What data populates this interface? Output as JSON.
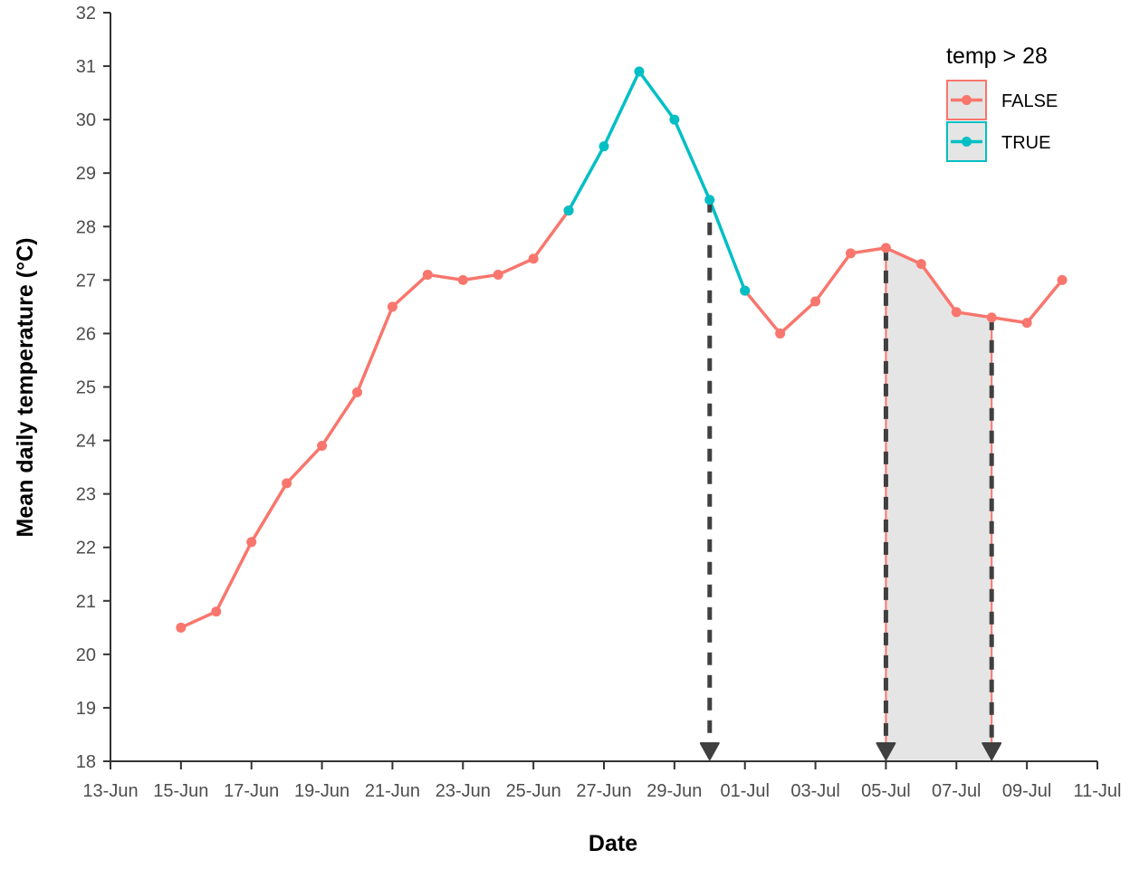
{
  "chart_data": {
    "type": "line",
    "title": "",
    "xlabel": "Date",
    "ylabel": "Mean daily temperature (°C)",
    "xlim": [
      "2023-06-13",
      "2023-07-11"
    ],
    "ylim": [
      18,
      32
    ],
    "x_ticks": [
      {
        "date": "2023-06-13",
        "label": "13-Jun"
      },
      {
        "date": "2023-06-15",
        "label": "15-Jun"
      },
      {
        "date": "2023-06-17",
        "label": "17-Jun"
      },
      {
        "date": "2023-06-19",
        "label": "19-Jun"
      },
      {
        "date": "2023-06-21",
        "label": "21-Jun"
      },
      {
        "date": "2023-06-23",
        "label": "23-Jun"
      },
      {
        "date": "2023-06-25",
        "label": "25-Jun"
      },
      {
        "date": "2023-06-27",
        "label": "27-Jun"
      },
      {
        "date": "2023-06-29",
        "label": "29-Jun"
      },
      {
        "date": "2023-07-01",
        "label": "01-Jul"
      },
      {
        "date": "2023-07-03",
        "label": "03-Jul"
      },
      {
        "date": "2023-07-05",
        "label": "05-Jul"
      },
      {
        "date": "2023-07-07",
        "label": "07-Jul"
      },
      {
        "date": "2023-07-09",
        "label": "09-Jul"
      },
      {
        "date": "2023-07-11",
        "label": "11-Jul"
      }
    ],
    "y_ticks": [
      18,
      19,
      20,
      21,
      22,
      23,
      24,
      25,
      26,
      27,
      28,
      29,
      30,
      31,
      32
    ],
    "grid": false,
    "legend": {
      "title": "temp > 28",
      "position": "top-right",
      "entries": [
        {
          "label": "FALSE",
          "color": "#f8766d"
        },
        {
          "label": "TRUE",
          "color": "#00bfc4"
        }
      ]
    },
    "series": [
      {
        "name": "FALSE",
        "color": "#f8766d",
        "segments": [
          [
            [
              "2023-06-15",
              20.5
            ],
            [
              "2023-06-16",
              20.8
            ],
            [
              "2023-06-17",
              22.1
            ],
            [
              "2023-06-18",
              23.2
            ],
            [
              "2023-06-19",
              23.9
            ],
            [
              "2023-06-20",
              24.9
            ],
            [
              "2023-06-21",
              26.5
            ],
            [
              "2023-06-22",
              27.1
            ],
            [
              "2023-06-23",
              27.0
            ],
            [
              "2023-06-24",
              27.1
            ],
            [
              "2023-06-25",
              27.4
            ],
            [
              "2023-06-26",
              28.3
            ]
          ],
          [
            [
              "2023-07-01",
              26.8
            ],
            [
              "2023-07-02",
              26.0
            ],
            [
              "2023-07-03",
              26.6
            ],
            [
              "2023-07-04",
              27.5
            ],
            [
              "2023-07-05",
              27.6
            ],
            [
              "2023-07-06",
              27.3
            ],
            [
              "2023-07-07",
              26.4
            ],
            [
              "2023-07-08",
              26.3
            ],
            [
              "2023-07-09",
              26.2
            ],
            [
              "2023-07-10",
              27.0
            ]
          ]
        ]
      },
      {
        "name": "TRUE",
        "color": "#00bfc4",
        "segments": [
          [
            [
              "2023-06-26",
              28.3
            ],
            [
              "2023-06-27",
              29.5
            ],
            [
              "2023-06-28",
              30.9
            ],
            [
              "2023-06-29",
              30.0
            ],
            [
              "2023-06-30",
              28.5
            ],
            [
              "2023-07-01",
              26.8
            ]
          ]
        ]
      }
    ],
    "annotations": {
      "shaded_region": {
        "from": "2023-07-05",
        "to": "2023-07-08",
        "fill": "#e5e5e5",
        "edge_color": "#f8766d"
      },
      "dashed_arrows": [
        {
          "date": "2023-06-30",
          "from_y": 28.5
        },
        {
          "date": "2023-07-05",
          "from_y": 27.6
        },
        {
          "date": "2023-07-08",
          "from_y": 26.3
        }
      ],
      "arrow_color": "#404040"
    }
  }
}
